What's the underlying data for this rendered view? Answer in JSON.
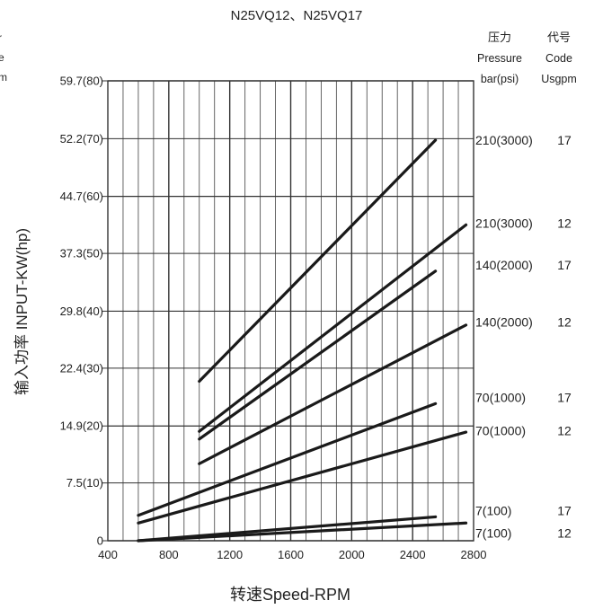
{
  "chart_data": {
    "type": "line",
    "title": "N25VQ12、N25VQ17",
    "xlabel": "转速Speed-RPM",
    "ylabel": "输入功率 INPUT-KW(hp)",
    "xlim": [
      400,
      2800
    ],
    "ylim": [
      0,
      59.7
    ],
    "x_ticks": [
      400,
      800,
      1200,
      1600,
      2000,
      2400,
      2800
    ],
    "x_tick_labels": [
      "400",
      "800",
      "1200",
      "1600",
      "2000",
      "2400",
      "2800"
    ],
    "y_ticks": [
      0,
      7.5,
      14.9,
      22.4,
      29.8,
      37.3,
      44.7,
      52.2,
      59.7
    ],
    "y_tick_labels": [
      "0",
      "7.5(10)",
      "14.9(20)",
      "22.4(30)",
      "29.8(40)",
      "37.3(50)",
      "44.7(60)",
      "52.2(70)",
      "59.7(80)"
    ],
    "grid": true,
    "left_header_cut": [
      "r",
      "e",
      "m"
    ],
    "right_header": {
      "pressure_cn": "压力",
      "pressure_en": "Pressure",
      "pressure_unit": "bar(psi)",
      "code_cn": "代号",
      "code_en": "Code",
      "code_unit": "Usgpm"
    },
    "series": [
      {
        "pressure": "210(3000)",
        "code": "17",
        "x": [
          1000,
          2550
        ],
        "y": [
          20.7,
          52.0
        ]
      },
      {
        "pressure": "210(3000)",
        "code": "12",
        "x": [
          1000,
          2750
        ],
        "y": [
          14.2,
          41.0
        ]
      },
      {
        "pressure": "140(2000)",
        "code": "17",
        "x": [
          1000,
          2550
        ],
        "y": [
          13.2,
          35.0
        ]
      },
      {
        "pressure": "140(2000)",
        "code": "12",
        "x": [
          1000,
          2750
        ],
        "y": [
          10.0,
          28.0
        ]
      },
      {
        "pressure": "70(1000)",
        "code": "17",
        "x": [
          600,
          2550
        ],
        "y": [
          3.3,
          17.8
        ]
      },
      {
        "pressure": "70(1000)",
        "code": "12",
        "x": [
          600,
          2750
        ],
        "y": [
          2.3,
          14.1
        ]
      },
      {
        "pressure": "7(100)",
        "code": "17",
        "x": [
          600,
          2550
        ],
        "y": [
          0.0,
          3.1
        ]
      },
      {
        "pressure": "7(100)",
        "code": "12",
        "x": [
          600,
          2750
        ],
        "y": [
          0.0,
          2.3
        ]
      }
    ],
    "right_labels": [
      {
        "pressure": "210(3000)",
        "code": "17",
        "y": 52.0
      },
      {
        "pressure": "210(3000)",
        "code": "12",
        "y": 41.2
      },
      {
        "pressure": "140(2000)",
        "code": "17",
        "y": 35.8
      },
      {
        "pressure": "140(2000)",
        "code": "12",
        "y": 28.4
      },
      {
        "pressure": "70(1000)",
        "code": "17",
        "y": 18.6
      },
      {
        "pressure": "70(1000)",
        "code": "12",
        "y": 14.3
      },
      {
        "pressure": "7(100)",
        "code": "17",
        "y": 3.9
      },
      {
        "pressure": "7(100)",
        "code": "12",
        "y": 1.0
      }
    ]
  }
}
